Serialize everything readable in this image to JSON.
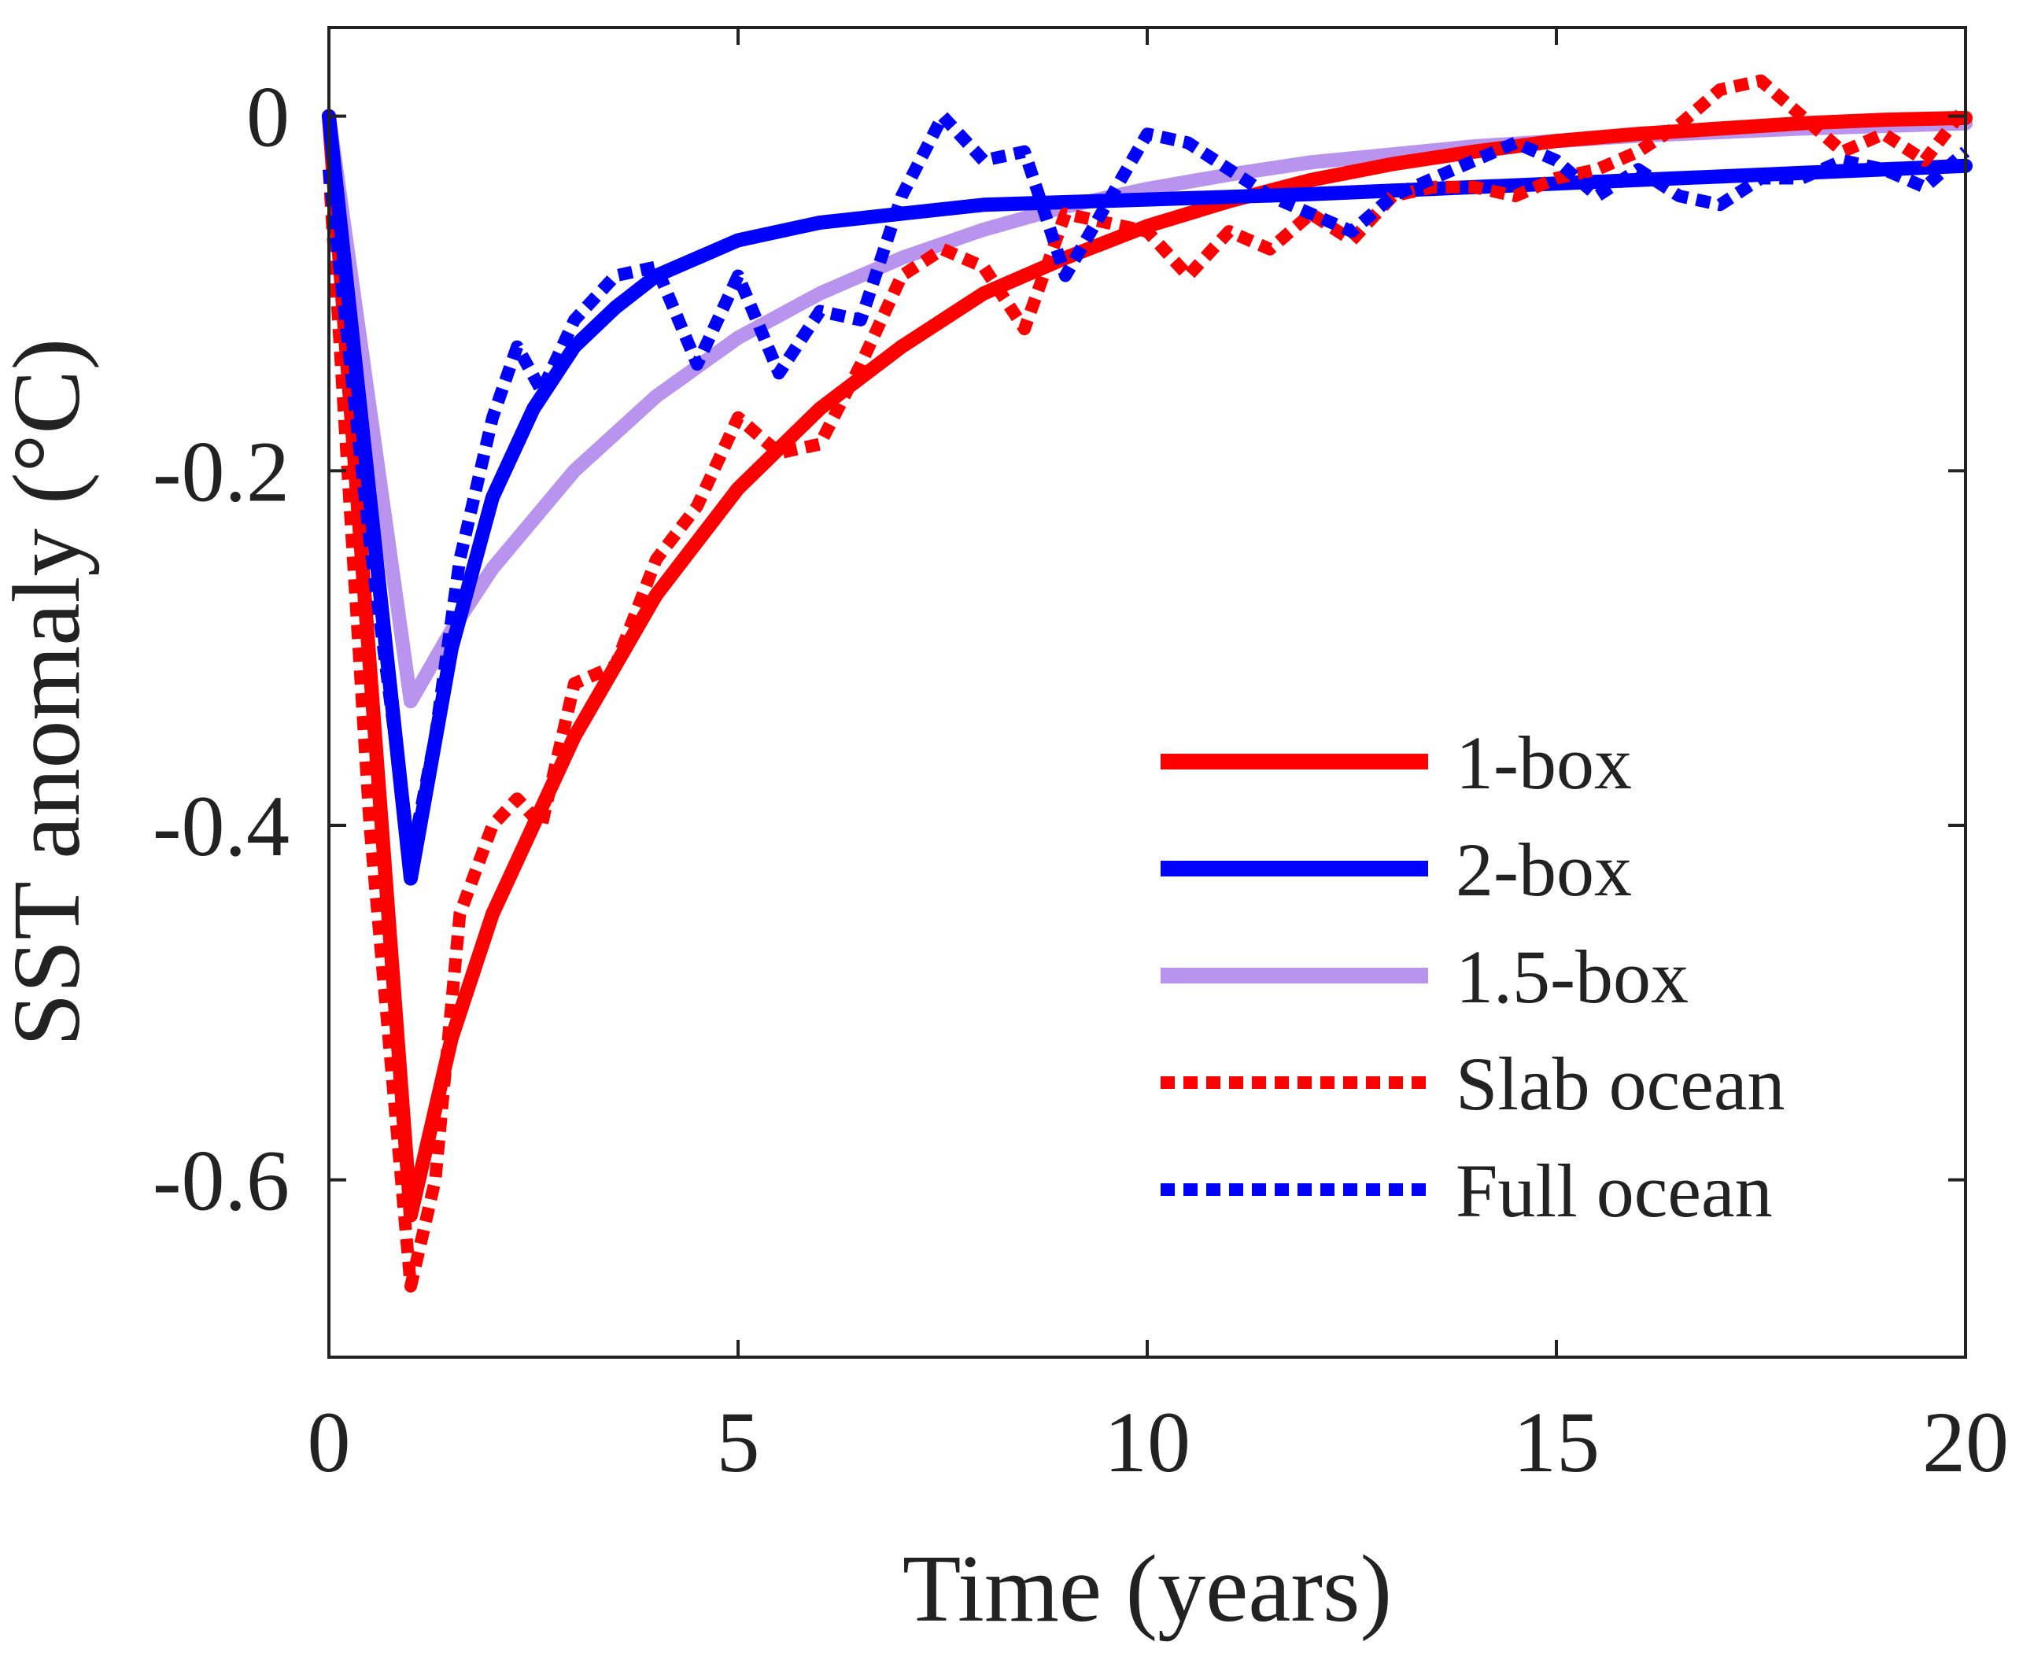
{
  "chart_data": {
    "type": "line",
    "title": "",
    "xlabel": "Time (years)",
    "ylabel": "SST anomaly (°C)",
    "xlim": [
      0,
      20
    ],
    "ylim": [
      -0.7,
      0.05
    ],
    "xticks": [
      0,
      5,
      10,
      15,
      20
    ],
    "xtick_labels": [
      "0",
      "5",
      "10",
      "15",
      "20"
    ],
    "yticks": [
      0,
      -0.2,
      -0.4,
      -0.6
    ],
    "ytick_labels": [
      "0",
      "-0.2",
      "-0.4",
      "-0.6"
    ],
    "grid": false,
    "legend_position": "lower-right",
    "series": [
      {
        "name": "1-box",
        "color": "#ff0000",
        "style": "solid",
        "x": [
          0,
          1,
          1.5,
          2,
          3,
          4,
          5,
          6,
          7,
          8,
          9,
          10,
          11,
          12,
          13,
          14,
          15,
          16,
          17,
          18,
          19,
          20
        ],
        "y": [
          0,
          -0.62,
          -0.52,
          -0.45,
          -0.35,
          -0.27,
          -0.21,
          -0.165,
          -0.13,
          -0.1,
          -0.08,
          -0.062,
          -0.048,
          -0.036,
          -0.027,
          -0.02,
          -0.014,
          -0.01,
          -0.007,
          -0.004,
          -0.002,
          -0.001
        ]
      },
      {
        "name": "2-box",
        "color": "#0000ff",
        "style": "solid",
        "x": [
          0,
          1,
          1.5,
          2,
          2.5,
          3,
          3.5,
          4,
          5,
          6,
          7,
          8,
          10,
          12,
          14,
          16,
          18,
          20
        ],
        "y": [
          0,
          -0.43,
          -0.3,
          -0.215,
          -0.165,
          -0.13,
          -0.108,
          -0.09,
          -0.07,
          -0.06,
          -0.055,
          -0.05,
          -0.047,
          -0.044,
          -0.04,
          -0.036,
          -0.032,
          -0.028
        ]
      },
      {
        "name": "1.5-box",
        "color": "#b894ee",
        "style": "solid",
        "x": [
          0,
          1,
          1.5,
          2,
          3,
          4,
          5,
          6,
          7,
          8,
          9,
          10,
          11,
          12,
          14,
          16,
          18,
          20
        ],
        "y": [
          0,
          -0.33,
          -0.29,
          -0.255,
          -0.2,
          -0.158,
          -0.125,
          -0.1,
          -0.08,
          -0.064,
          -0.051,
          -0.041,
          -0.033,
          -0.026,
          -0.017,
          -0.011,
          -0.007,
          -0.004
        ]
      },
      {
        "name": "Slab ocean",
        "color": "#ff0000",
        "style": "dotted",
        "x": [
          0,
          0.5,
          1,
          1.3,
          1.6,
          2,
          2.3,
          2.6,
          3,
          3.5,
          4,
          4.5,
          5,
          5.5,
          6,
          6.5,
          7,
          7.5,
          8,
          8.5,
          9,
          9.5,
          10,
          10.5,
          11,
          11.5,
          12,
          12.5,
          13,
          13.5,
          14,
          14.5,
          15,
          15.5,
          16,
          16.5,
          17,
          17.5,
          18,
          18.5,
          19,
          19.5,
          20
        ],
        "y": [
          -0.03,
          -0.4,
          -0.66,
          -0.6,
          -0.45,
          -0.4,
          -0.385,
          -0.4,
          -0.32,
          -0.31,
          -0.25,
          -0.22,
          -0.17,
          -0.19,
          -0.185,
          -0.14,
          -0.09,
          -0.075,
          -0.085,
          -0.12,
          -0.055,
          -0.06,
          -0.065,
          -0.09,
          -0.065,
          -0.075,
          -0.055,
          -0.07,
          -0.045,
          -0.04,
          -0.04,
          -0.045,
          -0.035,
          -0.03,
          -0.02,
          -0.005,
          0.015,
          0.02,
          0.0,
          -0.02,
          -0.01,
          -0.025,
          0.005
        ]
      },
      {
        "name": "Full ocean",
        "color": "#0000ff",
        "style": "dotted",
        "x": [
          0,
          0.5,
          1,
          1.3,
          1.6,
          2,
          2.3,
          2.6,
          3,
          3.5,
          4,
          4.5,
          5,
          5.5,
          6,
          6.5,
          7,
          7.5,
          8,
          8.5,
          9,
          9.5,
          10,
          10.5,
          11,
          11.5,
          12,
          12.5,
          13,
          13.5,
          14,
          14.5,
          15,
          15.5,
          16,
          16.5,
          17,
          17.5,
          18,
          18.5,
          19,
          19.5,
          20
        ],
        "y": [
          -0.03,
          -0.24,
          -0.42,
          -0.35,
          -0.25,
          -0.17,
          -0.13,
          -0.155,
          -0.115,
          -0.09,
          -0.085,
          -0.14,
          -0.09,
          -0.145,
          -0.11,
          -0.115,
          -0.045,
          0.0,
          -0.025,
          -0.02,
          -0.09,
          -0.05,
          -0.01,
          -0.015,
          -0.03,
          -0.045,
          -0.055,
          -0.065,
          -0.045,
          -0.035,
          -0.025,
          -0.015,
          -0.025,
          -0.045,
          -0.03,
          -0.045,
          -0.05,
          -0.035,
          -0.035,
          -0.025,
          -0.03,
          -0.04,
          -0.02
        ]
      }
    ]
  }
}
